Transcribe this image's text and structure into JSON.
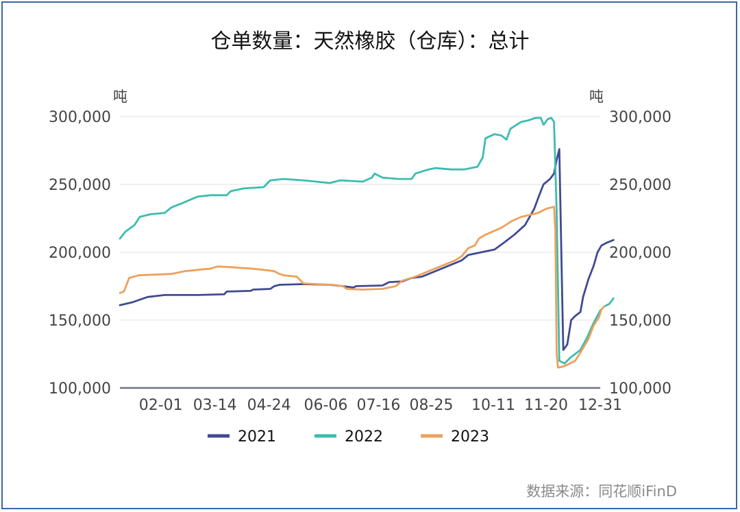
{
  "chart_data": {
    "type": "line",
    "title": "仓单数量：天然橡胶（仓库）：总计",
    "y_unit_left": "吨",
    "y_unit_right": "吨",
    "ylim": [
      100000,
      300000
    ],
    "y_ticks": [
      100000,
      150000,
      200000,
      250000,
      300000
    ],
    "y_tick_labels": [
      "100,000",
      "150,000",
      "200,000",
      "250,000",
      "300,000"
    ],
    "x_tick_labels": [
      "02-01",
      "03-14",
      "04-24",
      "06-06",
      "07-16",
      "08-25",
      "10-11",
      "11-20",
      "12-31"
    ],
    "x_unit": "day_of_year",
    "x_ticks": [
      32,
      73,
      114,
      157,
      197,
      237,
      284,
      324,
      365
    ],
    "xlim": [
      1,
      365
    ],
    "grid": true,
    "legend_position": "bottom",
    "series": [
      {
        "name": "2021",
        "color": "#3f4a91",
        "points": [
          [
            1,
            161000
          ],
          [
            10,
            163000
          ],
          [
            22,
            167000
          ],
          [
            35,
            168500
          ],
          [
            60,
            168500
          ],
          [
            80,
            169000
          ],
          [
            82,
            171000
          ],
          [
            100,
            171500
          ],
          [
            102,
            172500
          ],
          [
            115,
            173000
          ],
          [
            118,
            175000
          ],
          [
            122,
            176000
          ],
          [
            140,
            176500
          ],
          [
            160,
            176000
          ],
          [
            170,
            175000
          ],
          [
            178,
            174000
          ],
          [
            180,
            175000
          ],
          [
            200,
            175500
          ],
          [
            205,
            178000
          ],
          [
            215,
            178500
          ],
          [
            222,
            181000
          ],
          [
            230,
            182000
          ],
          [
            240,
            186000
          ],
          [
            250,
            190000
          ],
          [
            260,
            194000
          ],
          [
            265,
            198000
          ],
          [
            275,
            200000
          ],
          [
            285,
            202000
          ],
          [
            292,
            207000
          ],
          [
            300,
            213000
          ],
          [
            308,
            220000
          ],
          [
            315,
            232000
          ],
          [
            318,
            240000
          ],
          [
            322,
            250000
          ],
          [
            327,
            254000
          ],
          [
            330,
            258000
          ],
          [
            332,
            268000
          ],
          [
            334,
            276000
          ],
          [
            336,
            175000
          ],
          [
            337,
            128000
          ],
          [
            340,
            132000
          ],
          [
            343,
            150000
          ],
          [
            346,
            153000
          ],
          [
            350,
            156000
          ],
          [
            352,
            167000
          ],
          [
            356,
            180000
          ],
          [
            360,
            190000
          ],
          [
            363,
            200000
          ],
          [
            366,
            205000
          ],
          [
            370,
            207000
          ],
          [
            375,
            209000
          ]
        ]
      },
      {
        "name": "2022",
        "color": "#3cbcb0",
        "points": [
          [
            1,
            210000
          ],
          [
            5,
            215000
          ],
          [
            12,
            220000
          ],
          [
            16,
            226000
          ],
          [
            24,
            228000
          ],
          [
            35,
            229000
          ],
          [
            40,
            233000
          ],
          [
            48,
            236000
          ],
          [
            55,
            239000
          ],
          [
            60,
            241000
          ],
          [
            70,
            242000
          ],
          [
            82,
            242000
          ],
          [
            85,
            245000
          ],
          [
            95,
            247000
          ],
          [
            110,
            248000
          ],
          [
            115,
            253000
          ],
          [
            125,
            254000
          ],
          [
            140,
            253000
          ],
          [
            160,
            251000
          ],
          [
            168,
            253000
          ],
          [
            185,
            252000
          ],
          [
            192,
            255000
          ],
          [
            194,
            258000
          ],
          [
            200,
            255000
          ],
          [
            212,
            254000
          ],
          [
            222,
            254000
          ],
          [
            225,
            258000
          ],
          [
            235,
            261000
          ],
          [
            240,
            262000
          ],
          [
            252,
            261000
          ],
          [
            262,
            261000
          ],
          [
            272,
            263000
          ],
          [
            276,
            270000
          ],
          [
            278,
            284000
          ],
          [
            285,
            287000
          ],
          [
            290,
            286000
          ],
          [
            294,
            283000
          ],
          [
            297,
            291000
          ],
          [
            305,
            296000
          ],
          [
            310,
            297000
          ],
          [
            316,
            299000
          ],
          [
            320,
            299000
          ],
          [
            322,
            294000
          ],
          [
            323,
            295000
          ],
          [
            325,
            298000
          ],
          [
            328,
            299000
          ],
          [
            330,
            296000
          ],
          [
            332,
            230000
          ],
          [
            334,
            120000
          ],
          [
            338,
            118000
          ],
          [
            342,
            122000
          ],
          [
            346,
            125000
          ],
          [
            350,
            128000
          ],
          [
            355,
            137000
          ],
          [
            360,
            148000
          ],
          [
            365,
            157000
          ],
          [
            368,
            160000
          ],
          [
            372,
            162000
          ],
          [
            375,
            166000
          ]
        ]
      },
      {
        "name": "2023",
        "color": "#eea05a",
        "points": [
          [
            1,
            170000
          ],
          [
            4,
            171000
          ],
          [
            8,
            181000
          ],
          [
            15,
            183000
          ],
          [
            40,
            184000
          ],
          [
            50,
            186000
          ],
          [
            60,
            187000
          ],
          [
            70,
            188000
          ],
          [
            75,
            189500
          ],
          [
            85,
            189000
          ],
          [
            100,
            188000
          ],
          [
            110,
            187000
          ],
          [
            118,
            186000
          ],
          [
            122,
            184000
          ],
          [
            125,
            183000
          ],
          [
            135,
            182000
          ],
          [
            140,
            177000
          ],
          [
            150,
            176500
          ],
          [
            162,
            176000
          ],
          [
            170,
            175000
          ],
          [
            173,
            173000
          ],
          [
            185,
            172500
          ],
          [
            200,
            173000
          ],
          [
            210,
            175000
          ],
          [
            215,
            179000
          ],
          [
            225,
            182000
          ],
          [
            235,
            186000
          ],
          [
            245,
            190000
          ],
          [
            255,
            194000
          ],
          [
            260,
            197000
          ],
          [
            265,
            203000
          ],
          [
            270,
            205000
          ],
          [
            273,
            210000
          ],
          [
            278,
            213000
          ],
          [
            283,
            215000
          ],
          [
            290,
            218000
          ],
          [
            298,
            223000
          ],
          [
            305,
            226000
          ],
          [
            318,
            229000
          ],
          [
            324,
            232000
          ],
          [
            328,
            233000
          ],
          [
            330,
            233500
          ],
          [
            331,
            216000
          ],
          [
            332,
            125000
          ],
          [
            333,
            115000
          ],
          [
            336,
            115500
          ],
          [
            340,
            117000
          ],
          [
            346,
            120000
          ],
          [
            350,
            126000
          ],
          [
            356,
            136000
          ],
          [
            360,
            146000
          ],
          [
            364,
            152000
          ],
          [
            366,
            158000
          ],
          [
            368,
            160000
          ]
        ]
      }
    ]
  },
  "footer": {
    "source": "数据来源：同花顺iFinD"
  }
}
